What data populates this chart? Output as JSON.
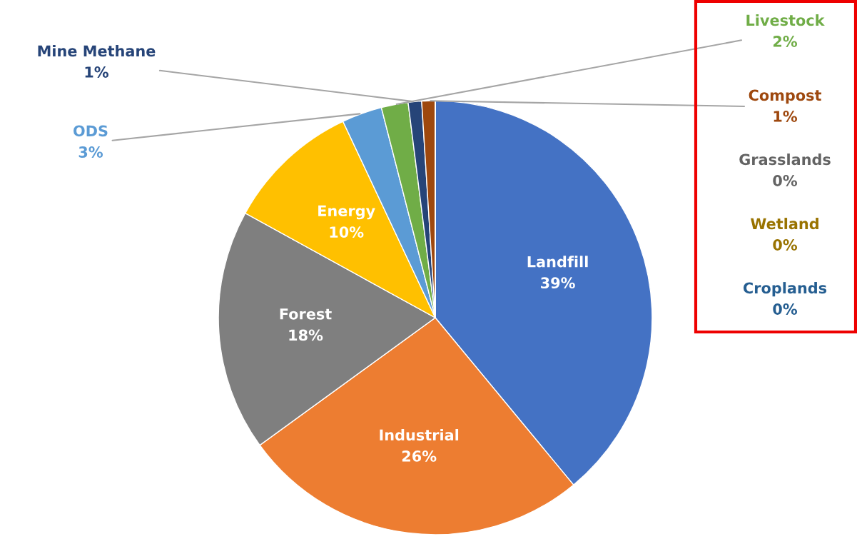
{
  "chart_data": {
    "type": "pie",
    "categories": [
      "Landfill",
      "Industrial",
      "Forest",
      "Energy",
      "ODS",
      "Livestock",
      "Mine Methane",
      "Compost",
      "Grasslands",
      "Wetland",
      "Croplands"
    ],
    "values": [
      39,
      26,
      18,
      10,
      3,
      2,
      1,
      1,
      0,
      0,
      0
    ],
    "value_labels": [
      "39%",
      "26%",
      "18%",
      "10%",
      "3%",
      "2%",
      "1%",
      "1%",
      "0%",
      "0%",
      "0%"
    ],
    "colors": [
      "#4472c4",
      "#ed7d31",
      "#7f7f7f",
      "#ffc000",
      "#5b9bd5",
      "#70ad47",
      "#264478",
      "#9e480e",
      "#636363",
      "#997300",
      "#255e91"
    ]
  }
}
